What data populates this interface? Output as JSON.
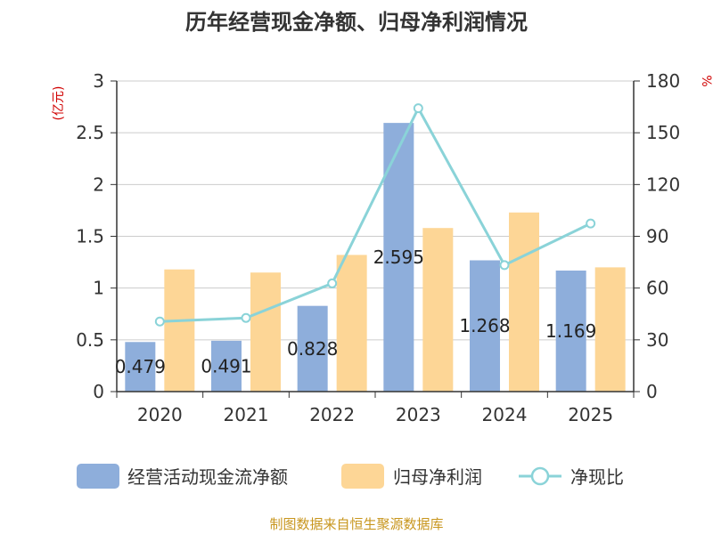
{
  "chart_data": {
    "type": "bar",
    "title": "历年经营现金净额、归母净利润情况",
    "categories": [
      "2020",
      "2021",
      "2022",
      "2023",
      "2024",
      "2025"
    ],
    "series": [
      {
        "name": "经营活动现金流净额",
        "axis": "left",
        "type": "bar",
        "color": "#8eaedb",
        "values": [
          0.479,
          0.491,
          0.828,
          2.595,
          1.268,
          1.169
        ],
        "labels": [
          "0.479",
          "0.491",
          "0.828",
          "2.595",
          "1.268",
          "1.169"
        ]
      },
      {
        "name": "归母净利润",
        "axis": "left",
        "type": "bar",
        "color": "#fdd696",
        "values": [
          1.18,
          1.15,
          1.32,
          1.58,
          1.73,
          1.2
        ]
      },
      {
        "name": "净现比",
        "axis": "right",
        "type": "line",
        "color": "#8ad3d8",
        "values": [
          40.6,
          42.7,
          62.7,
          164.2,
          73.3,
          97.4
        ]
      }
    ],
    "y_left": {
      "unit": "(亿元)",
      "ylim": [
        0,
        3
      ],
      "ticks": [
        "0",
        "0.5",
        "1",
        "1.5",
        "2",
        "2.5",
        "3"
      ]
    },
    "y_right": {
      "unit": "%",
      "ylim": [
        0,
        180
      ],
      "ticks": [
        "0",
        "30",
        "60",
        "90",
        "120",
        "150",
        "180"
      ]
    },
    "grid": true,
    "legend_position": "bottom"
  },
  "source": "制图数据来自恒生聚源数据库"
}
